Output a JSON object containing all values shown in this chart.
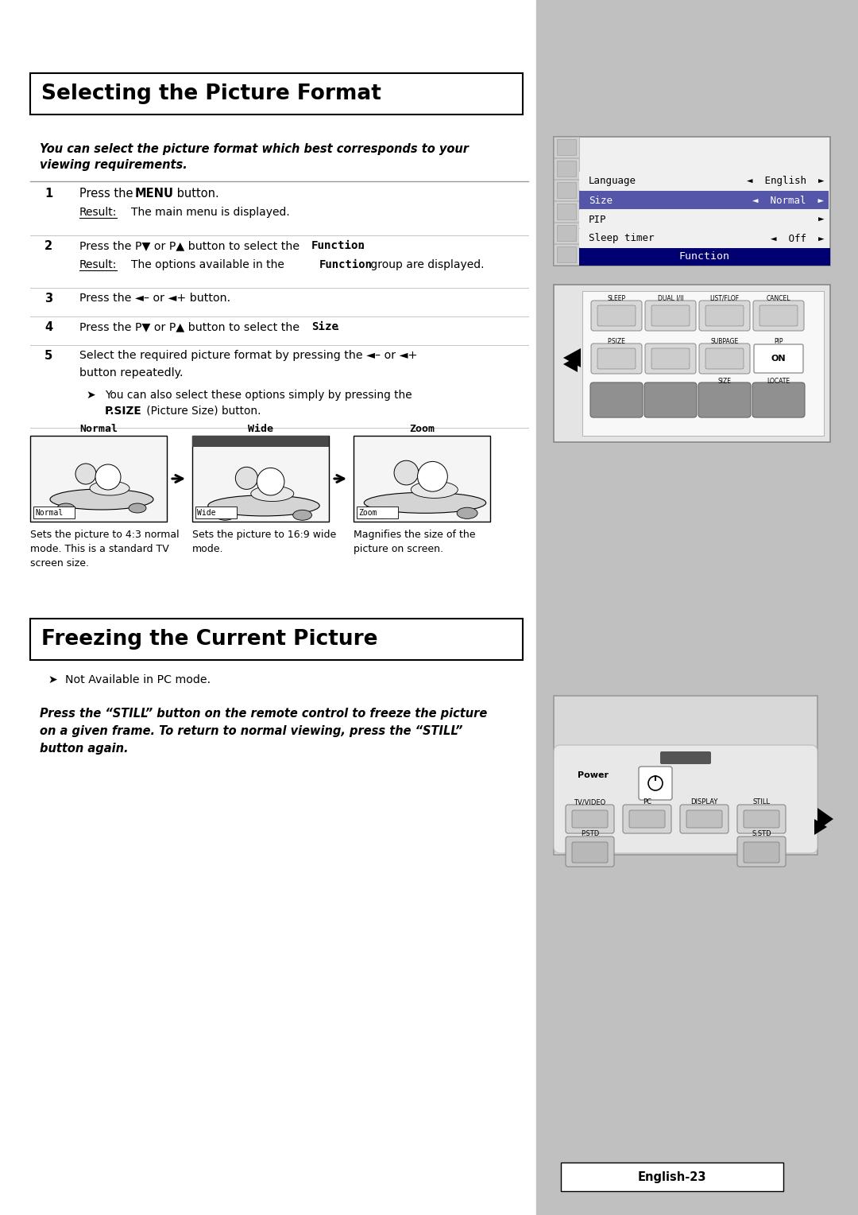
{
  "page_bg": "#ffffff",
  "sidebar_bg": "#c0c0c0",
  "title1": "Selecting the Picture Format",
  "title2": "Freezing the Current Picture",
  "footer": "English-23",
  "mode_labels": [
    "Normal",
    "Wide",
    "Zoom"
  ],
  "mode_desc": [
    "Sets the picture to 4:3 normal\nmode. This is a standard TV\nscreen size.",
    "Sets the picture to 16:9 wide\nmode.",
    "Magnifies the size of the\npicture on screen."
  ],
  "menu_items": [
    [
      "Sleep timer",
      "◄  Off  ►",
      false
    ],
    [
      "PIP",
      "►",
      false
    ],
    [
      "Size",
      "◄  Normal  ►",
      true
    ],
    [
      "Language",
      "◄  English  ►",
      false
    ]
  ],
  "rc1_row1_labels": [
    "SLEEP",
    "DUAL I/II",
    "LIST/FLOF",
    "CANCEL"
  ],
  "rc1_row2_labels": [
    "P.SIZE",
    "",
    "SUBPAGE",
    "PIP"
  ],
  "rc1_row3_size_labels": [
    "SIZE",
    "LOCATE"
  ],
  "rc2_btn_labels": [
    "TV/VIDEO",
    "PC",
    "DISPLAY",
    "STILL"
  ],
  "rc2_bot_labels": [
    "P.STD",
    "S.STD"
  ]
}
